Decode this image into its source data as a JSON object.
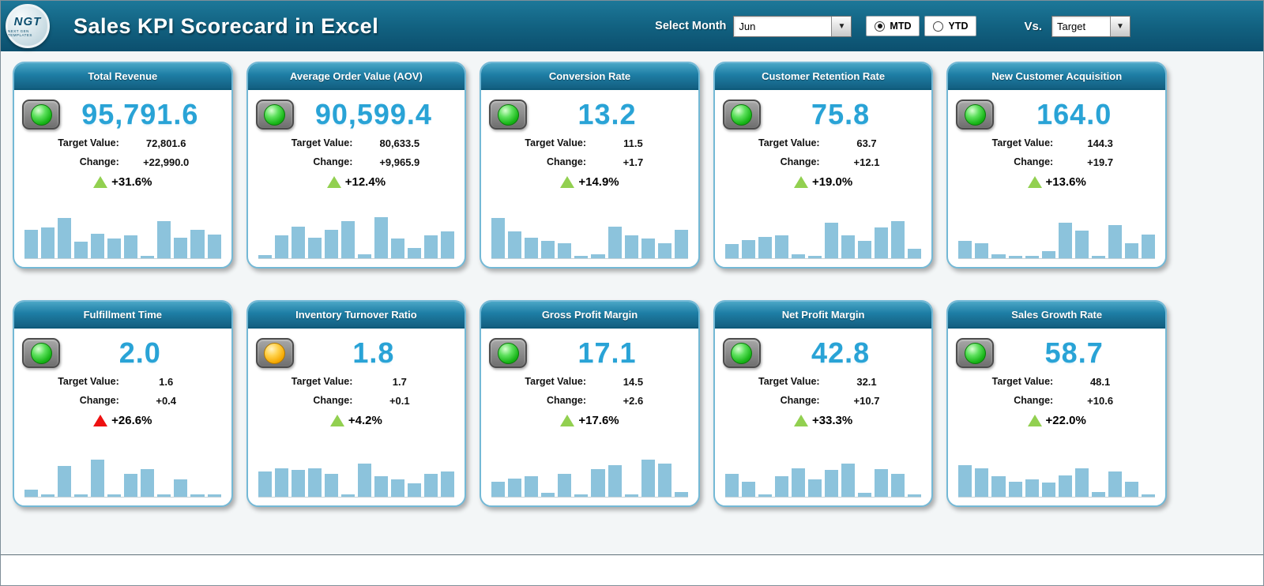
{
  "header": {
    "logo_text": "NGT",
    "logo_subtext": "NEXT GEN TEMPLATES",
    "title": "Sales KPI Scorecard in Excel",
    "select_month_label": "Select Month",
    "month_value": "Jun",
    "period_options": [
      {
        "label": "MTD",
        "selected": true
      },
      {
        "label": "YTD",
        "selected": false
      }
    ],
    "vs_label": "Vs.",
    "vs_value": "Target"
  },
  "labels": {
    "target": "Target Value:",
    "change": "Change:"
  },
  "colors": {
    "header_teal": "#0c4f6e",
    "card_header_teal": "#1d7ea6",
    "value_blue": "#29a3d6",
    "bar_blue": "#8cc3dc",
    "trend_green": "#92d050",
    "trend_red": "#ee1111",
    "lamp_green": "#2ecc2e",
    "lamp_amber": "#ffb020",
    "card_border": "#74b9d6"
  },
  "chart_data": [
    {
      "type": "bar",
      "title": "Total Revenue",
      "value": "95,791.6",
      "target": "72,801.6",
      "change": "+22,990.0",
      "pct": "+31.6%",
      "light": "green",
      "trend": "green",
      "values": [
        55,
        60,
        78,
        32,
        48,
        38,
        45,
        4,
        72,
        40,
        56,
        46
      ]
    },
    {
      "type": "bar",
      "title": "Average Order Value (AOV)",
      "value": "90,599.4",
      "target": "80,633.5",
      "change": "+9,965.9",
      "pct": "+12.4%",
      "light": "green",
      "trend": "green",
      "values": [
        6,
        45,
        62,
        40,
        55,
        72,
        8,
        80,
        38,
        20,
        45,
        52
      ]
    },
    {
      "type": "bar",
      "title": "Conversion Rate",
      "value": "13.2",
      "target": "11.5",
      "change": "+1.7",
      "pct": "+14.9%",
      "light": "green",
      "trend": "green",
      "values": [
        78,
        52,
        40,
        34,
        30,
        5,
        8,
        62,
        45,
        38,
        30,
        55
      ]
    },
    {
      "type": "bar",
      "title": "Customer Retention Rate",
      "value": "75.8",
      "target": "63.7",
      "change": "+12.1",
      "pct": "+19.0%",
      "light": "green",
      "trend": "green",
      "values": [
        28,
        36,
        42,
        45,
        8,
        5,
        70,
        44,
        34,
        60,
        72,
        18
      ]
    },
    {
      "type": "bar",
      "title": "New Customer Acquisition",
      "value": "164.0",
      "target": "144.3",
      "change": "+19.7",
      "pct": "+13.6%",
      "light": "green",
      "trend": "green",
      "values": [
        34,
        30,
        8,
        5,
        4,
        14,
        70,
        54,
        5,
        64,
        30,
        46
      ]
    },
    {
      "type": "bar",
      "title": "Fulfillment Time",
      "value": "2.0",
      "target": "1.6",
      "change": "+0.4",
      "pct": "+26.6%",
      "light": "green",
      "trend": "red",
      "values": [
        14,
        4,
        60,
        4,
        72,
        4,
        44,
        54,
        4,
        34,
        4,
        4
      ]
    },
    {
      "type": "bar",
      "title": "Inventory Turnover Ratio",
      "value": "1.8",
      "target": "1.7",
      "change": "+0.1",
      "pct": "+4.2%",
      "light": "amber",
      "trend": "green",
      "values": [
        50,
        55,
        52,
        55,
        44,
        5,
        64,
        40,
        34,
        26,
        44,
        50
      ]
    },
    {
      "type": "bar",
      "title": "Gross Profit Margin",
      "value": "17.1",
      "target": "14.5",
      "change": "+2.6",
      "pct": "+17.6%",
      "light": "green",
      "trend": "green",
      "values": [
        30,
        36,
        40,
        8,
        44,
        5,
        54,
        62,
        5,
        72,
        64,
        10
      ]
    },
    {
      "type": "bar",
      "title": "Net Profit Margin",
      "value": "42.8",
      "target": "32.1",
      "change": "+10.7",
      "pct": "+33.3%",
      "light": "green",
      "trend": "green",
      "values": [
        44,
        30,
        5,
        40,
        55,
        34,
        52,
        64,
        8,
        54,
        44,
        5
      ]
    },
    {
      "type": "bar",
      "title": "Sales Growth Rate",
      "value": "58.7",
      "target": "48.1",
      "change": "+10.6",
      "pct": "+22.0%",
      "light": "green",
      "trend": "green",
      "values": [
        62,
        55,
        40,
        30,
        34,
        28,
        42,
        55,
        10,
        50,
        30,
        5
      ]
    }
  ]
}
